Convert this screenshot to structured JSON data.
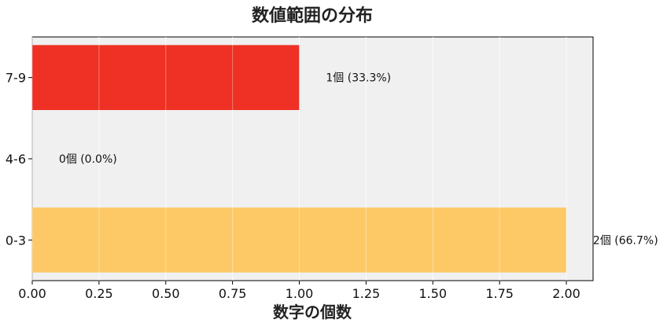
{
  "chart_data": {
    "type": "bar",
    "orientation": "horizontal",
    "title": "数値範囲の分布",
    "xlabel": "数字の個数",
    "ylabel": "",
    "categories": [
      "0-3",
      "4-6",
      "7-9"
    ],
    "values": [
      2,
      0,
      1
    ],
    "data_labels": [
      "2個 (66.7%)",
      "0個 (0.0%)",
      "1個 (33.3%)"
    ],
    "colors": [
      "#fdc967",
      "#fdc967",
      "#ee3124"
    ],
    "xlim": [
      0,
      2.1
    ],
    "xticks": [
      "0.00",
      "0.25",
      "0.50",
      "0.75",
      "1.00",
      "1.25",
      "1.50",
      "1.75",
      "2.00"
    ],
    "grid": true,
    "background": "#f0f0f0"
  }
}
